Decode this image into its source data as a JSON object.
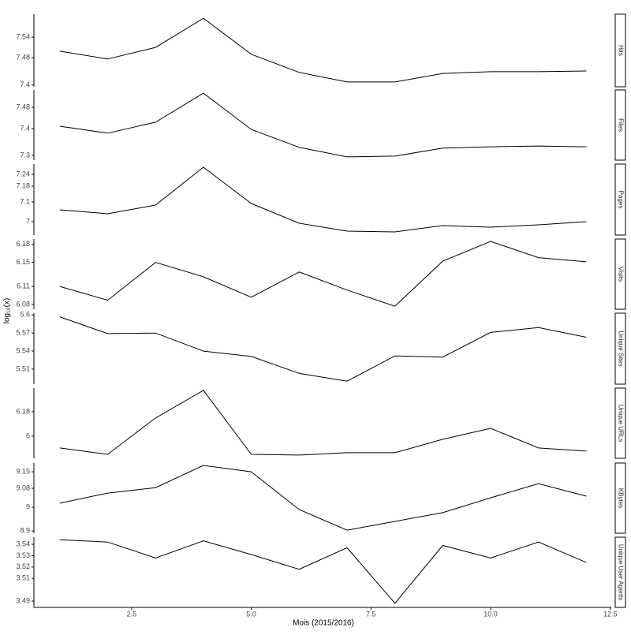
{
  "chart_data": {
    "type": "line",
    "x": [
      1,
      2,
      3,
      4,
      5,
      6,
      7,
      8,
      9,
      10,
      11,
      12
    ],
    "xlim": [
      0.46,
      12.52
    ],
    "xticks": [
      2.5,
      {
        "value": 5,
        "label": "5.0"
      },
      7.5,
      {
        "value": 10,
        "label": "10.0"
      },
      12.5
    ],
    "xlabel": "Mois (2015/2016)",
    "ylabel": "log₁₀(x)",
    "color": "#000000",
    "panels": [
      {
        "name": "Hits",
        "ylim": [
          7.395,
          7.607
        ],
        "yticks": [
          7.4,
          7.48,
          7.54
        ],
        "values": [
          7.499,
          7.476,
          7.51,
          7.595,
          7.49,
          7.437,
          7.409,
          7.409,
          7.434,
          7.439,
          7.439,
          7.441
        ]
      },
      {
        "name": "Files",
        "ylim": [
          7.282,
          7.545
        ],
        "yticks": [
          7.3,
          7.4,
          7.48
        ],
        "values": [
          7.409,
          7.383,
          7.424,
          7.533,
          7.397,
          7.33,
          7.294,
          7.297,
          7.327,
          7.332,
          7.335,
          7.332
        ]
      },
      {
        "name": "Pages",
        "ylim": [
          6.932,
          7.292
        ],
        "yticks": [
          7,
          7.1,
          7.18,
          7.24
        ],
        "values": [
          7.06,
          7.04,
          7.084,
          7.276,
          7.092,
          6.992,
          6.952,
          6.948,
          6.98,
          6.972,
          6.984,
          7.0
        ]
      },
      {
        "name": "Visits",
        "ylim": [
          6.072,
          6.189
        ],
        "yticks": [
          6.08,
          6.11,
          6.15,
          6.18
        ],
        "values": [
          6.11,
          6.087,
          6.15,
          6.126,
          6.092,
          6.134,
          6.104,
          6.077,
          6.152,
          6.185,
          6.158,
          6.151
        ]
      },
      {
        "name": "Unique Sites",
        "ylim": [
          5.485,
          5.603
        ],
        "yticks": [
          5.51,
          5.54,
          5.57,
          5.6
        ],
        "values": [
          5.597,
          5.569,
          5.57,
          5.54,
          5.531,
          5.503,
          5.49,
          5.532,
          5.53,
          5.571,
          5.579,
          5.563
        ]
      },
      {
        "name": "Unique URLs",
        "ylim": [
          5.837,
          6.354
        ],
        "yticks": [
          6,
          6.18
        ],
        "values": [
          5.913,
          5.866,
          6.134,
          6.337,
          5.866,
          5.861,
          5.878,
          5.878,
          5.977,
          6.058,
          5.913,
          5.89
        ]
      },
      {
        "name": "KBytes",
        "ylim": [
          8.89,
          9.187
        ],
        "yticks": [
          8.9,
          9,
          9.08,
          9.15
        ],
        "values": [
          9.017,
          9.06,
          9.083,
          9.177,
          9.15,
          8.99,
          8.903,
          8.94,
          8.977,
          9.04,
          9.1,
          9.047
        ]
      },
      {
        "name": "Unique User Agents",
        "ylim": [
          3.4844,
          3.5463
        ],
        "yticks": [
          3.49,
          3.51,
          3.52,
          3.53,
          3.54
        ],
        "values": [
          3.544,
          3.542,
          3.528,
          3.543,
          3.531,
          3.518,
          3.537,
          3.488,
          3.539,
          3.528,
          3.542,
          3.524
        ]
      }
    ]
  }
}
